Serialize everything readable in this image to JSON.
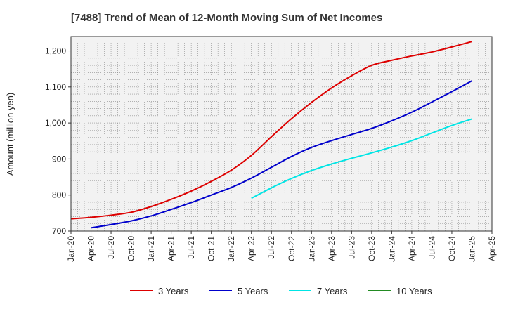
{
  "chart_data": {
    "type": "line",
    "title": "[7488]  Trend of Mean of 12-Month Moving Sum of Net Incomes",
    "ylabel": "Amount (million yen)",
    "xlabel": "",
    "ylim": [
      700,
      1240
    ],
    "yticks": [
      700,
      800,
      900,
      1000,
      1100,
      1200
    ],
    "ytick_labels": [
      "700",
      "800",
      "900",
      "1,000",
      "1,100",
      "1,200"
    ],
    "x_start": "Jan-20",
    "x_end": "Apr-25",
    "x_tick_labels": [
      "Jan-20",
      "Apr-20",
      "Jul-20",
      "Oct-20",
      "Jan-21",
      "Apr-21",
      "Jul-21",
      "Oct-21",
      "Jan-22",
      "Apr-22",
      "Jul-22",
      "Oct-22",
      "Jan-23",
      "Apr-23",
      "Jul-23",
      "Oct-23",
      "Jan-24",
      "Apr-24",
      "Jul-24",
      "Oct-24",
      "Jan-25",
      "Apr-25"
    ],
    "grid": true,
    "legend_position": "bottom",
    "series": [
      {
        "name": "3 Years",
        "color": "#dd0000",
        "x": [
          "Jan-20",
          "Apr-20",
          "Jul-20",
          "Oct-20",
          "Jan-21",
          "Apr-21",
          "Jul-21",
          "Oct-21",
          "Jan-22",
          "Apr-22",
          "Jul-22",
          "Oct-22",
          "Jan-23",
          "Apr-23",
          "Jul-23",
          "Oct-23",
          "Jan-24",
          "Apr-24",
          "Jul-24",
          "Oct-24",
          "Jan-25"
        ],
        "values": [
          734,
          738,
          744,
          752,
          768,
          788,
          811,
          838,
          869,
          910,
          962,
          1012,
          1057,
          1097,
          1131,
          1160,
          1174,
          1186,
          1197,
          1211,
          1226
        ]
      },
      {
        "name": "5 Years",
        "color": "#0000cc",
        "x": [
          "Apr-20",
          "Jul-20",
          "Oct-20",
          "Jan-21",
          "Apr-21",
          "Jul-21",
          "Oct-21",
          "Jan-22",
          "Apr-22",
          "Jul-22",
          "Oct-22",
          "Jan-23",
          "Apr-23",
          "Jul-23",
          "Oct-23",
          "Jan-24",
          "Apr-24",
          "Jul-24",
          "Oct-24",
          "Jan-25"
        ],
        "values": [
          709,
          718,
          728,
          742,
          760,
          779,
          800,
          821,
          847,
          877,
          907,
          932,
          951,
          968,
          985,
          1006,
          1030,
          1058,
          1087,
          1117
        ]
      },
      {
        "name": "7 Years",
        "color": "#00e5e5",
        "x": [
          "Apr-22",
          "Jul-22",
          "Oct-22",
          "Jan-23",
          "Apr-23",
          "Jul-23",
          "Oct-23",
          "Jan-24",
          "Apr-24",
          "Jul-24",
          "Oct-24",
          "Jan-25"
        ],
        "values": [
          791,
          820,
          846,
          868,
          886,
          902,
          917,
          933,
          951,
          972,
          993,
          1011
        ]
      },
      {
        "name": "10 Years",
        "color": "#228b22",
        "x": [],
        "values": []
      }
    ]
  }
}
